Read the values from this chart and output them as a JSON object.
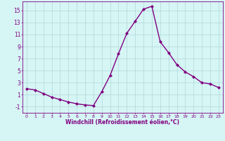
{
  "x": [
    0,
    1,
    2,
    3,
    4,
    5,
    6,
    7,
    8,
    9,
    10,
    11,
    12,
    13,
    14,
    15,
    16,
    17,
    18,
    19,
    20,
    21,
    22,
    23
  ],
  "y": [
    2.0,
    1.8,
    1.2,
    0.6,
    0.2,
    -0.2,
    -0.5,
    -0.7,
    -0.8,
    1.5,
    4.2,
    7.8,
    11.2,
    13.2,
    15.2,
    15.7,
    9.8,
    8.0,
    6.0,
    4.8,
    4.0,
    3.0,
    2.8,
    2.2
  ],
  "line_color": "#800080",
  "marker": "D",
  "marker_size": 2,
  "bg_color": "#d6f5f5",
  "grid_color": "#b0d8d8",
  "xlabel": "Windchill (Refroidissement éolien,°C)",
  "yticks": [
    -1,
    1,
    3,
    5,
    7,
    9,
    11,
    13,
    15
  ],
  "xticks": [
    0,
    1,
    2,
    3,
    4,
    5,
    6,
    7,
    8,
    9,
    10,
    11,
    12,
    13,
    14,
    15,
    16,
    17,
    18,
    19,
    20,
    21,
    22,
    23
  ],
  "ylim": [
    -2.0,
    16.5
  ],
  "xlim": [
    -0.5,
    23.5
  ],
  "axis_color": "#800080",
  "tick_color": "#800080",
  "grid_linewidth": 0.5,
  "line_width": 1.0
}
